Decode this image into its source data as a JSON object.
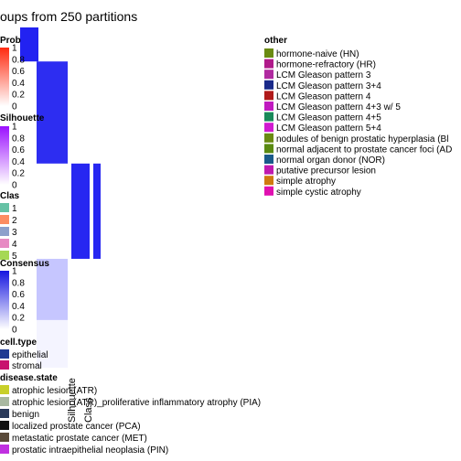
{
  "chart_data": {
    "type": "heatmap",
    "title": "oups from 250 partitions",
    "legends": {
      "prob": {
        "title": "Prob",
        "ticks": [
          "1",
          "0.8",
          "0.6",
          "0.4",
          "0.2",
          "0"
        ],
        "colors": [
          "#ff2a10",
          "#ffffff"
        ]
      },
      "silhouette": {
        "title": "Silhouette",
        "ticks": [
          "1",
          "0.8",
          "0.6",
          "0.4",
          "0.2",
          "0"
        ],
        "colors": [
          "#9b10ff",
          "#ffffff"
        ]
      },
      "class": {
        "title": "Clas",
        "items": [
          {
            "label": "1",
            "color": "#66c2a5"
          },
          {
            "label": "2",
            "color": "#fc8d62"
          },
          {
            "label": "3",
            "color": "#8da0cb"
          },
          {
            "label": "4",
            "color": "#e78ac3"
          },
          {
            "label": "5",
            "color": "#a6d854"
          }
        ]
      },
      "consensus": {
        "title": "Consensus",
        "ticks": [
          "1",
          "0.8",
          "0.6",
          "0.4",
          "0.2",
          "0"
        ],
        "colors": [
          "#1515e0",
          "#ffffff"
        ]
      },
      "cell_type": {
        "title": "cell.type",
        "items": [
          {
            "label": "epithelial",
            "color": "#1f3a93"
          },
          {
            "label": "stromal",
            "color": "#c8126e"
          }
        ]
      },
      "disease_state": {
        "title": "disease.state",
        "items": [
          {
            "label": "atrophic lesion (ATR)",
            "color": "#c8d02a"
          },
          {
            "label": "atrophic lesion (ATR)_proliferative inflammatory atrophy (PIA)",
            "color": "#a8b8a0"
          },
          {
            "label": "benign",
            "color": "#2a3a5a"
          },
          {
            "label": "localized prostate cancer (PCA)",
            "color": "#101010"
          },
          {
            "label": "metastatic prostate cancer  (MET)",
            "color": "#5a4a3a"
          },
          {
            "label": "prostatic intraepithelial neoplasia (PIN)",
            "color": "#c030e0"
          }
        ]
      },
      "other": {
        "title": "other",
        "items": [
          {
            "label": "hormone-naive  (HN)",
            "color": "#6a8a12"
          },
          {
            "label": "hormone-refractory (HR)",
            "color": "#b01a8a"
          },
          {
            "label": "LCM Gleason pattern 3",
            "color": "#b02aa0"
          },
          {
            "label": "LCM Gleason pattern 3+4",
            "color": "#1a2a8a"
          },
          {
            "label": "LCM Gleason pattern 4",
            "color": "#b01a1a"
          },
          {
            "label": "LCM Gleason pattern 4+3 w/ 5",
            "color": "#c01ac0"
          },
          {
            "label": "LCM Gleason pattern 4+5",
            "color": "#1a8a5a"
          },
          {
            "label": "LCM Gleason pattern 5+4",
            "color": "#d01ad0"
          },
          {
            "label": "nodules of benign prostatic hyperplasia  (Bl",
            "color": "#6a8a12"
          },
          {
            "label": "normal adjacent to prostate cancer foci (AD",
            "color": "#5a8a12"
          },
          {
            "label": "normal organ donor (NOR)",
            "color": "#1a5a8a"
          },
          {
            "label": "putative precursor lesion",
            "color": "#c01ab0"
          },
          {
            "label": "simple atrophy",
            "color": "#d07a10"
          },
          {
            "label": "simple cystic atrophy",
            "color": "#e010b0"
          }
        ]
      }
    },
    "column_labels": [
      "Silhouette",
      "Class"
    ],
    "blocks": [
      {
        "cluster": "1",
        "size_fraction": 0.28,
        "consensus": 0.95
      },
      {
        "cluster": "2",
        "size_fraction": 0.3,
        "consensus": 0.92
      },
      {
        "cluster": "3",
        "size_fraction": 0.1,
        "consensus": 0.97
      },
      {
        "cluster": "4",
        "size_fraction": 0.18,
        "consensus": 0.25
      },
      {
        "cluster": "5",
        "size_fraction": 0.14,
        "consensus": 0.05
      }
    ]
  }
}
